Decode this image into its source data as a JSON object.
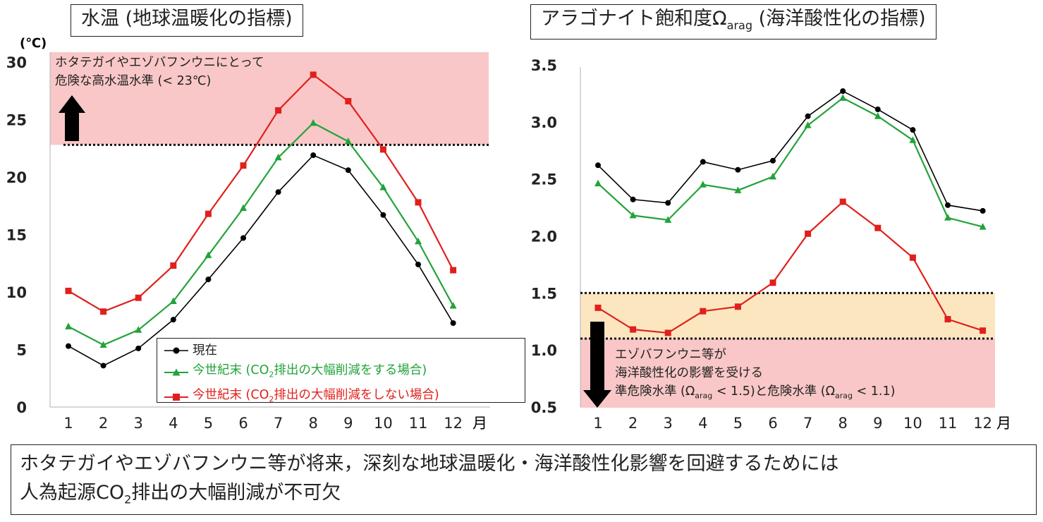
{
  "left_title": "水温 (地球温暖化の指標)",
  "right_title": {
    "main": "アラゴナイト飽和度Ω",
    "sub": "arag",
    "rest": " (海洋酸性化の指標)"
  },
  "bottom": {
    "line1": "ホタテガイやエゾバフンウニ等が将来，深刻な地球温暖化・海洋酸性化影響を回避するためには",
    "line2_pre": "人為起源CO",
    "line2_sub": "2",
    "line2_post": "排出の大幅削減が不可欠"
  },
  "left_annotation": {
    "line1": "ホタテガイやエゾバフンウニにとって",
    "line2": "危険な高水温水準 (< 23℃)"
  },
  "right_annotation": {
    "line1": "エゾバフンウニ等が",
    "line2": "海洋酸性化の影響を受ける",
    "line3_a": "準危険水準 (Ω",
    "line3_b": "arag",
    "line3_c": " < 1.5)と危険水準 (Ω",
    "line3_d": "arag",
    "line3_e": " < 1.1)"
  },
  "legend": {
    "current": "現在",
    "mitigation_pre": "今世紀末 (CO",
    "mitigation_sub": "2",
    "mitigation_post": "排出の大幅削減をする場合)",
    "no_mitigation_pre": "今世紀末 (CO",
    "no_mitigation_sub": "2",
    "no_mitigation_post": "排出の大幅削減をしない場合)"
  },
  "colors": {
    "current": "#000000",
    "mitigation": "#22a33a",
    "no_mitigation": "#e0201c",
    "danger_band": "#f9c7c7",
    "caution_band": "#fce6c0"
  },
  "chart_data": [
    {
      "type": "line",
      "title": "水温 (地球温暖化の指標)",
      "ylabel": "(℃)",
      "xlabel": "月",
      "x": [
        1,
        2,
        3,
        4,
        5,
        6,
        7,
        8,
        9,
        10,
        11,
        12
      ],
      "yticks": [
        "0",
        "5",
        "10",
        "15",
        "20",
        "25",
        "30"
      ],
      "xticks": [
        "1",
        "2",
        "3",
        "4",
        "5",
        "6",
        "7",
        "8",
        "9",
        "10",
        "11",
        "12"
      ],
      "ylim": [
        0,
        30.5
      ],
      "threshold": 22.8,
      "series": [
        {
          "name": "現在",
          "marker": "circle",
          "values": [
            5.3,
            3.6,
            5.1,
            7.6,
            11.1,
            14.7,
            18.7,
            21.9,
            20.6,
            16.7,
            12.4,
            7.3
          ]
        },
        {
          "name": "今世紀末 (CO2排出の大幅削減をする場合)",
          "marker": "triangle",
          "values": [
            7.0,
            5.4,
            6.7,
            9.2,
            13.2,
            17.3,
            21.7,
            24.7,
            23.1,
            19.1,
            14.4,
            8.8
          ]
        },
        {
          "name": "今世紀末 (CO2排出の大幅削減をしない場合)",
          "marker": "square",
          "values": [
            10.1,
            8.3,
            9.5,
            12.3,
            16.8,
            21.0,
            25.8,
            28.9,
            26.6,
            22.4,
            17.8,
            11.9
          ]
        }
      ]
    },
    {
      "type": "line",
      "title": "アラゴナイト飽和度Ωarag (海洋酸性化の指標)",
      "xlabel": "月",
      "x": [
        1,
        2,
        3,
        4,
        5,
        6,
        7,
        8,
        9,
        10,
        11,
        12
      ],
      "yticks": [
        "0.5",
        "1.0",
        "1.5",
        "2.0",
        "2.5",
        "3.0",
        "3.5"
      ],
      "xticks": [
        "1",
        "2",
        "3",
        "4",
        "5",
        "6",
        "7",
        "8",
        "9",
        "10",
        "11",
        "12"
      ],
      "ylim": [
        0.5,
        3.5
      ],
      "thresholds": [
        1.5,
        1.1
      ],
      "series": [
        {
          "name": "現在",
          "marker": "circle",
          "values": [
            2.62,
            2.32,
            2.29,
            2.65,
            2.58,
            2.66,
            3.05,
            3.27,
            3.11,
            2.93,
            2.27,
            2.22
          ]
        },
        {
          "name": "今世紀末 (CO2排出の大幅削減をする場合)",
          "marker": "triangle",
          "values": [
            2.46,
            2.18,
            2.14,
            2.45,
            2.4,
            2.52,
            2.97,
            3.21,
            3.05,
            2.84,
            2.16,
            2.08
          ]
        },
        {
          "name": "今世紀末 (CO2排出の大幅削減をしない場合)",
          "marker": "square",
          "values": [
            1.37,
            1.18,
            1.15,
            1.34,
            1.38,
            1.59,
            2.02,
            2.3,
            2.07,
            1.81,
            1.27,
            1.17
          ]
        }
      ]
    }
  ]
}
